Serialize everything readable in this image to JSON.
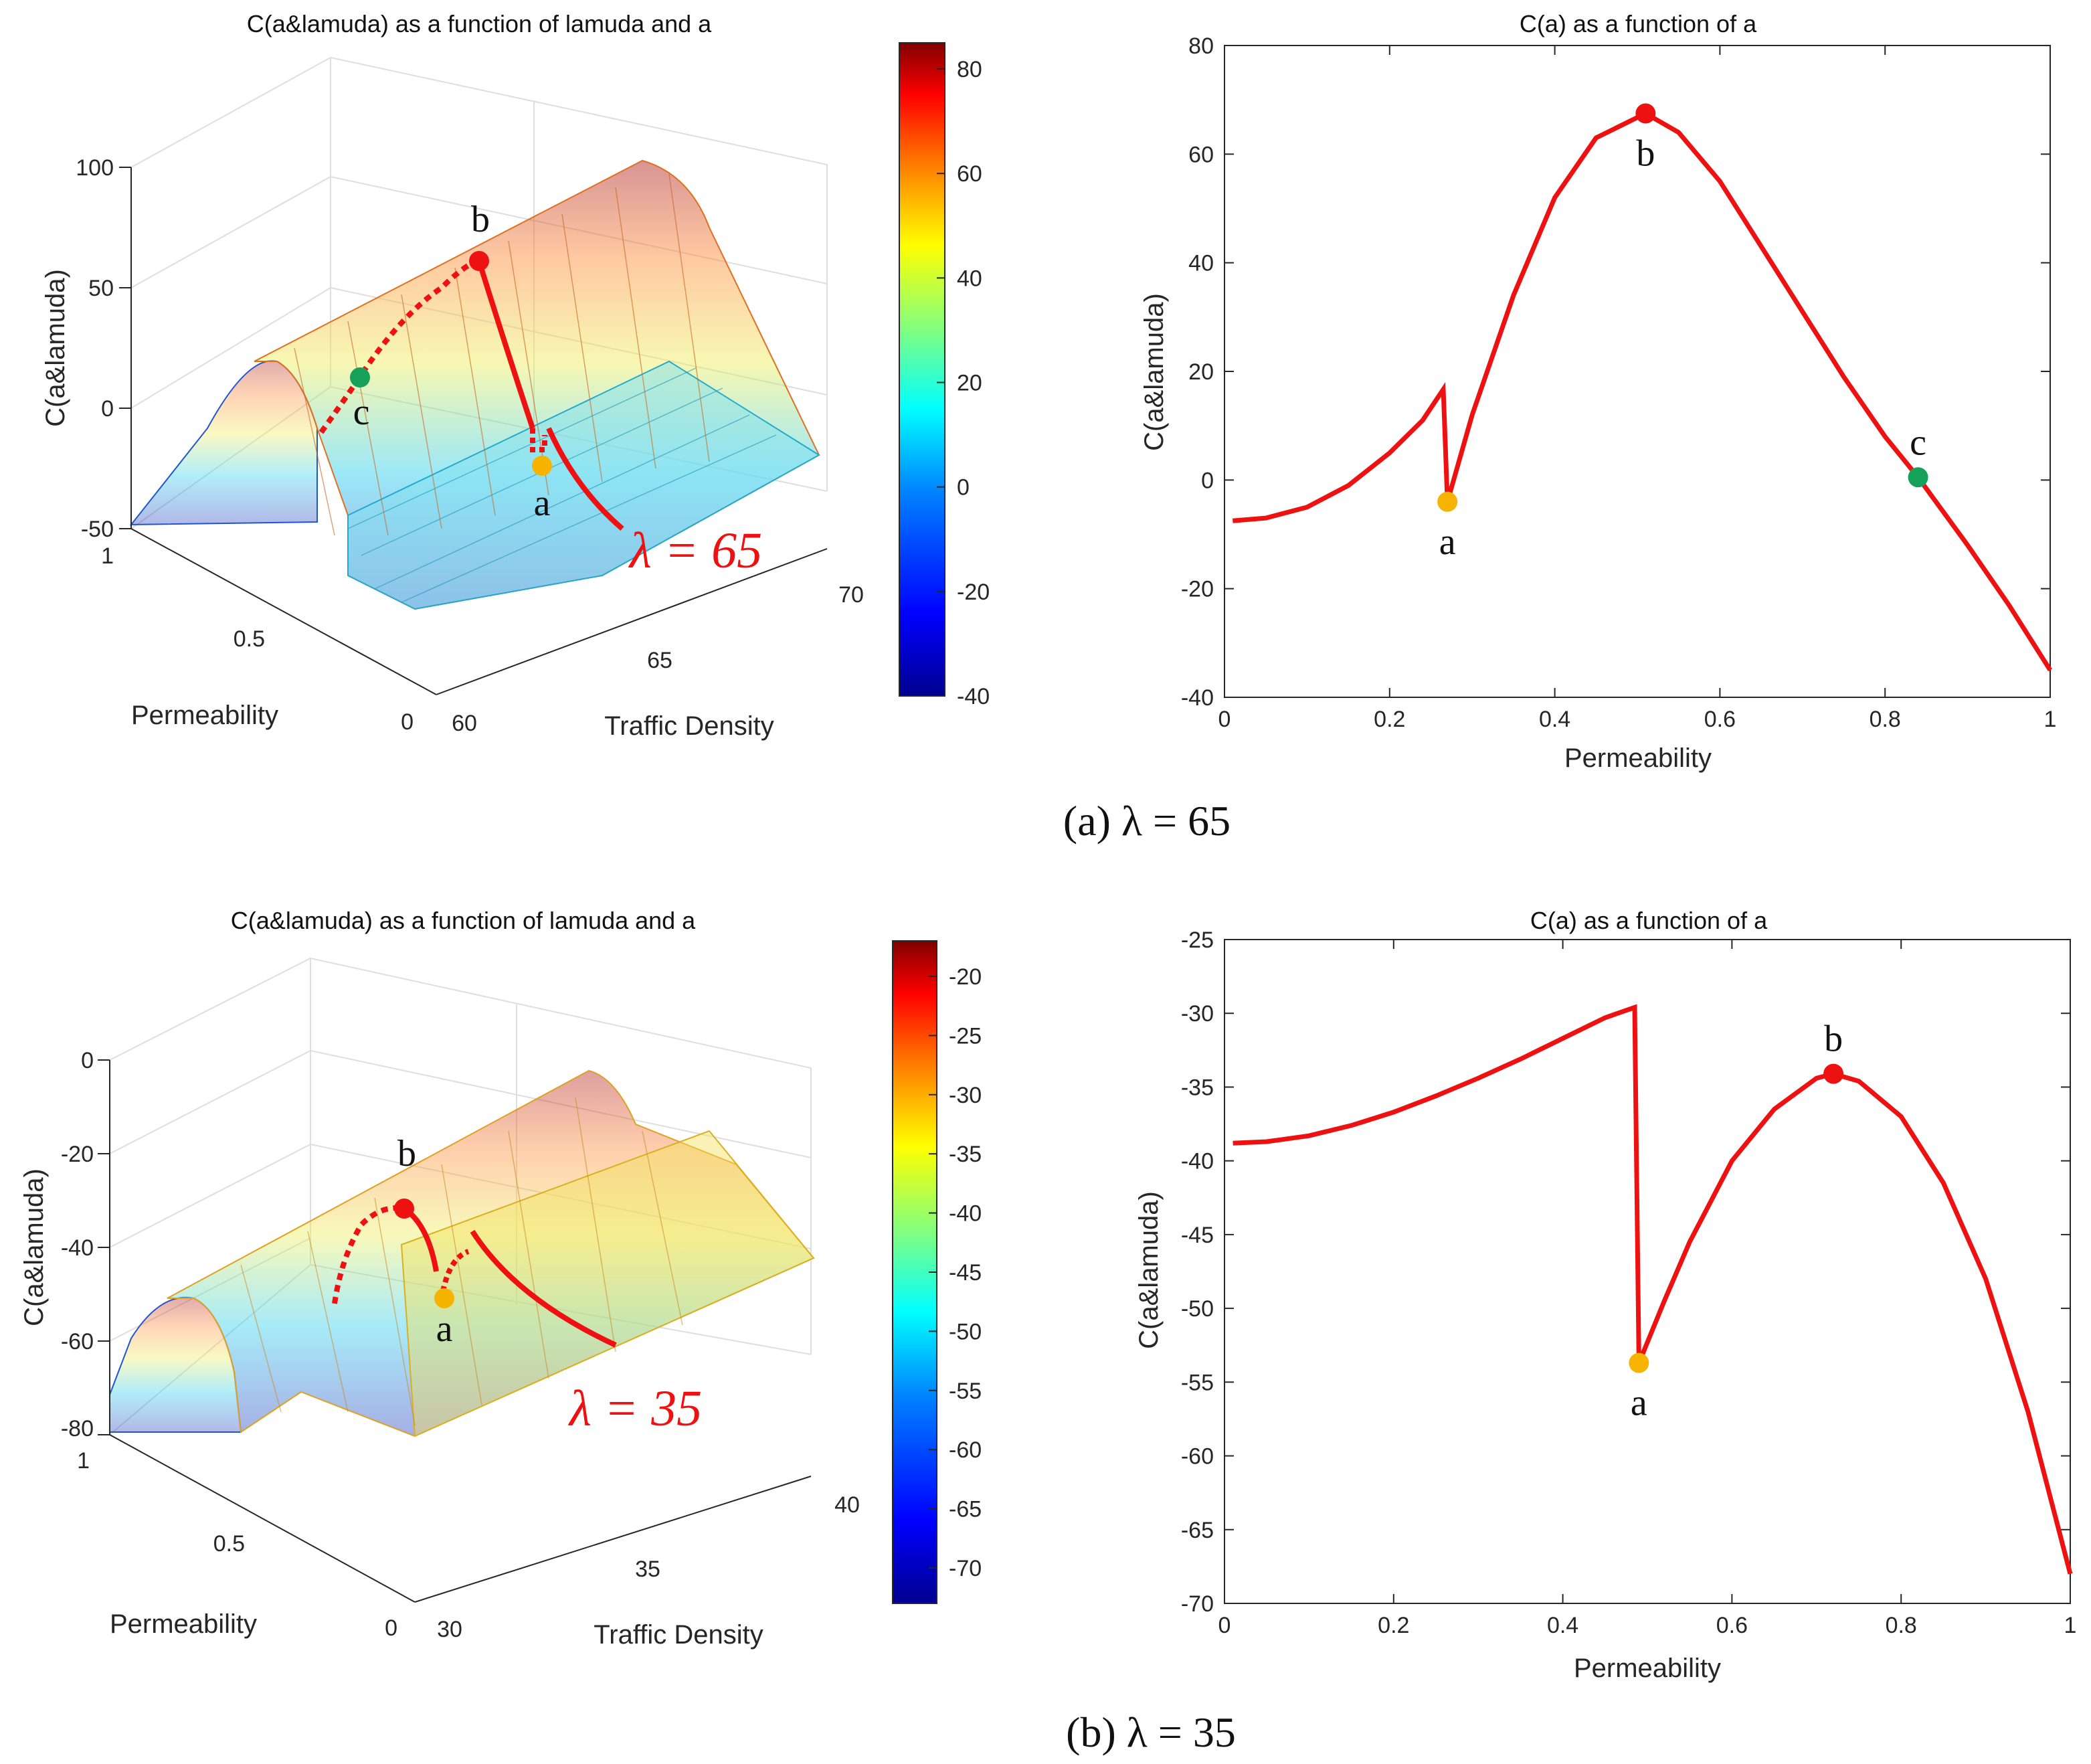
{
  "figure": {
    "caption_a": "(a) λ = 65",
    "caption_b": "(b) λ = 35",
    "surface_title": "C(a&lamuda) as a function of lamuda and a",
    "curve_title": "C(a) as a function of a",
    "x3d_label": "Traffic Density",
    "y3d_label": "Permeability",
    "z_label": "C(a&lamuda)",
    "x2d_label": "Permeability",
    "y2d_label": "C(a&lamuda)",
    "lambda_a": "λ = 65",
    "lambda_b": "λ = 35",
    "point_labels": {
      "a": "a",
      "b": "b",
      "c": "c"
    }
  },
  "colors": {
    "curve": "#ee1111",
    "point_a": "#f6b400",
    "point_b": "#ee1111",
    "point_c": "#16a05a",
    "jet": [
      "#00008f",
      "#0000ff",
      "#0080ff",
      "#00ffff",
      "#80ff80",
      "#ffff00",
      "#ff8000",
      "#ff0000",
      "#800000"
    ]
  },
  "chart_data": [
    {
      "type": "surface",
      "panel": "a-left",
      "title": "C(a&lamuda) as a function of lamuda and a",
      "xlabel": "Traffic Density",
      "ylabel": "Permeability",
      "zlabel": "C(a&lamuda)",
      "xlim": [
        60,
        70
      ],
      "ylim": [
        0,
        1
      ],
      "zlim": [
        -50,
        100
      ],
      "xticks": [
        "60",
        "65",
        "70"
      ],
      "yticks": [
        "0",
        "0.5",
        "1"
      ],
      "zticks": [
        "-50",
        "0",
        "50",
        "100"
      ],
      "colorbar": {
        "range": [
          -40,
          85
        ],
        "ticks": [
          "-40",
          "-20",
          "0",
          "20",
          "40",
          "60",
          "80"
        ]
      },
      "annotation": "λ = 65",
      "highlighted_points": {
        "a": 0.27,
        "b": 0.51,
        "c": 0.84
      }
    },
    {
      "type": "line",
      "panel": "a-right",
      "title": "C(a) as a function of a",
      "xlabel": "Permeability",
      "ylabel": "C(a&lamuda)",
      "xlim": [
        0,
        1
      ],
      "ylim": [
        -40,
        80
      ],
      "xticks": [
        "0",
        "0.2",
        "0.4",
        "0.6",
        "0.8",
        "1"
      ],
      "yticks": [
        "-40",
        "-20",
        "0",
        "20",
        "40",
        "60",
        "80"
      ],
      "series": [
        {
          "name": "C(a)",
          "x": [
            0.01,
            0.05,
            0.1,
            0.15,
            0.2,
            0.24,
            0.265,
            0.27,
            0.3,
            0.35,
            0.4,
            0.45,
            0.51,
            0.55,
            0.6,
            0.65,
            0.7,
            0.75,
            0.8,
            0.84,
            0.9,
            0.95,
            1.0
          ],
          "y": [
            -7.5,
            -7,
            -5,
            -1,
            5,
            11,
            16.7,
            -4,
            12,
            34,
            52,
            63,
            67.5,
            64,
            55,
            43,
            31,
            19,
            8,
            0.5,
            -12,
            -23,
            -35
          ]
        }
      ],
      "points": [
        {
          "label": "a",
          "x": 0.27,
          "y": -4
        },
        {
          "label": "b",
          "x": 0.51,
          "y": 67.5
        },
        {
          "label": "c",
          "x": 0.84,
          "y": 0.5
        }
      ]
    },
    {
      "type": "surface",
      "panel": "b-left",
      "title": "C(a&lamuda) as a function of lamuda and a",
      "xlabel": "Traffic Density",
      "ylabel": "Permeability",
      "zlabel": "C(a&lamuda)",
      "xlim": [
        30,
        40
      ],
      "ylim": [
        0,
        1
      ],
      "zlim": [
        -80,
        0
      ],
      "xticks": [
        "30",
        "35",
        "40"
      ],
      "yticks": [
        "0",
        "0.5",
        "1"
      ],
      "zticks": [
        "-80",
        "-60",
        "-40",
        "-20",
        "0"
      ],
      "colorbar": {
        "range": [
          -73,
          -17
        ],
        "ticks": [
          "-70",
          "-65",
          "-60",
          "-55",
          "-50",
          "-45",
          "-40",
          "-35",
          "-30",
          "-25",
          "-20"
        ]
      },
      "annotation": "λ = 35",
      "highlighted_points": {
        "a": 0.49,
        "b": 0.72
      }
    },
    {
      "type": "line",
      "panel": "b-right",
      "title": "C(a) as a function of a",
      "xlabel": "Permeability",
      "ylabel": "C(a&lamuda)",
      "xlim": [
        0,
        1
      ],
      "ylim": [
        -70,
        -25
      ],
      "xticks": [
        "0",
        "0.2",
        "0.4",
        "0.6",
        "0.8",
        "1"
      ],
      "yticks": [
        "-70",
        "-65",
        "-60",
        "-55",
        "-50",
        "-45",
        "-40",
        "-35",
        "-30",
        "-25"
      ],
      "series": [
        {
          "name": "C(a)",
          "x": [
            0.01,
            0.05,
            0.1,
            0.15,
            0.2,
            0.25,
            0.3,
            0.35,
            0.4,
            0.45,
            0.485,
            0.49,
            0.52,
            0.55,
            0.6,
            0.65,
            0.7,
            0.72,
            0.75,
            0.8,
            0.85,
            0.9,
            0.95,
            1.0
          ],
          "y": [
            -38.8,
            -38.7,
            -38.3,
            -37.6,
            -36.7,
            -35.6,
            -34.4,
            -33.1,
            -31.7,
            -30.3,
            -29.6,
            -53.7,
            -49.5,
            -45.5,
            -40,
            -36.5,
            -34.4,
            -34.1,
            -34.6,
            -37,
            -41.5,
            -48,
            -57,
            -68
          ]
        }
      ],
      "points": [
        {
          "label": "a",
          "x": 0.49,
          "y": -53.7
        },
        {
          "label": "b",
          "x": 0.72,
          "y": -34.1
        }
      ]
    }
  ]
}
